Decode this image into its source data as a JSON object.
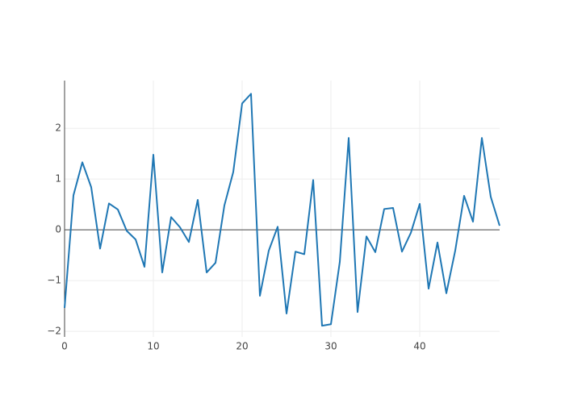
{
  "chart_data": {
    "type": "line",
    "x": [
      0,
      1,
      2,
      3,
      4,
      5,
      6,
      7,
      8,
      9,
      10,
      11,
      12,
      13,
      14,
      15,
      16,
      17,
      18,
      19,
      20,
      21,
      22,
      23,
      24,
      25,
      26,
      27,
      28,
      29,
      30,
      31,
      32,
      33,
      34,
      35,
      36,
      37,
      38,
      39,
      40,
      41,
      42,
      43,
      44,
      45,
      46,
      47,
      48,
      49
    ],
    "y": [
      -1.54,
      0.68,
      1.33,
      0.84,
      -0.37,
      0.52,
      0.4,
      -0.02,
      -0.19,
      -0.73,
      1.48,
      -0.84,
      0.25,
      0.05,
      -0.24,
      0.59,
      -0.84,
      -0.65,
      0.48,
      1.14,
      2.49,
      2.68,
      -1.3,
      -0.41,
      0.06,
      -1.65,
      -0.43,
      -0.48,
      0.98,
      -1.89,
      -1.86,
      -0.63,
      1.81,
      -1.62,
      -0.13,
      -0.44,
      0.41,
      0.43,
      -0.43,
      -0.06,
      0.51,
      -1.16,
      -0.25,
      -1.25,
      -0.41,
      0.67,
      0.16,
      1.81,
      0.65,
      0.08
    ],
    "color": "#1f77b4",
    "xlim": [
      0,
      49
    ],
    "xticks": [
      0,
      10,
      20,
      30,
      40
    ],
    "ylim": [
      -2.11,
      2.94
    ],
    "yticks": [
      {
        "value": -2,
        "label": "−2"
      },
      {
        "value": -1,
        "label": "−1"
      },
      0,
      1,
      2
    ],
    "grid": true
  }
}
